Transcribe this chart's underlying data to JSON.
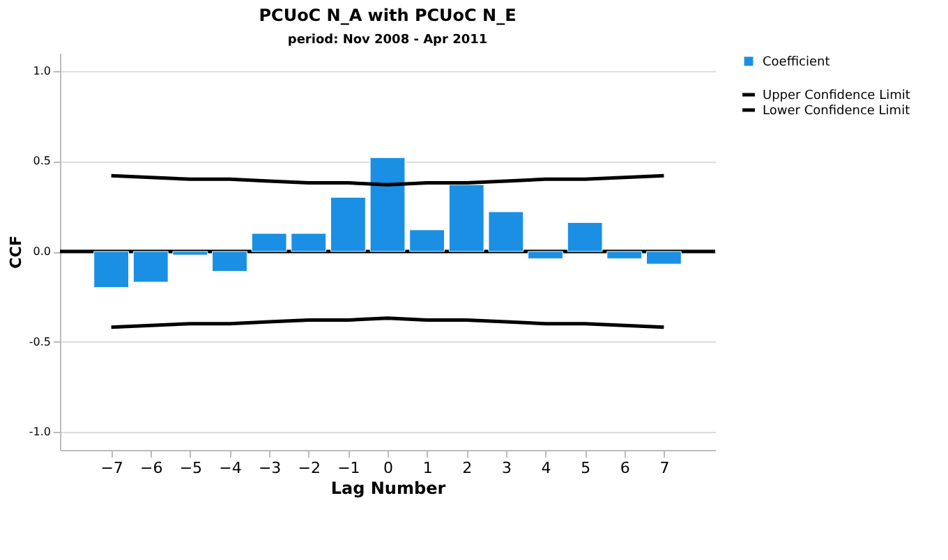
{
  "chart_data": {
    "type": "bar",
    "title": "PCUoC N_A with PCUoC N_E",
    "subtitle": "period: Nov 2008 - Apr 2011",
    "xlabel": "Lag Number",
    "ylabel": "CCF",
    "x": [
      -7,
      -6,
      -5,
      -4,
      -3,
      -2,
      -1,
      0,
      1,
      2,
      3,
      4,
      5,
      6,
      7
    ],
    "series": [
      {
        "name": "Coefficient",
        "color": "#1a8fe3",
        "values": [
          -0.2,
          -0.17,
          -0.02,
          -0.11,
          0.1,
          0.1,
          0.3,
          0.52,
          0.12,
          0.37,
          0.22,
          -0.04,
          0.16,
          -0.04,
          -0.07
        ]
      },
      {
        "name": "Upper Confidence Limit",
        "type": "line",
        "color": "#000000",
        "values": [
          0.42,
          0.41,
          0.4,
          0.4,
          0.39,
          0.38,
          0.38,
          0.37,
          0.38,
          0.38,
          0.39,
          0.4,
          0.4,
          0.41,
          0.42
        ]
      },
      {
        "name": "Lower Confidence Limit",
        "type": "line",
        "color": "#000000",
        "values": [
          -0.42,
          -0.41,
          -0.4,
          -0.4,
          -0.39,
          -0.38,
          -0.38,
          -0.37,
          -0.38,
          -0.38,
          -0.39,
          -0.4,
          -0.4,
          -0.41,
          -0.42
        ]
      }
    ],
    "xlim": [
      -8.3,
      8.3
    ],
    "xticks": [
      -7,
      -6,
      -5,
      -4,
      -3,
      -2,
      -1,
      0,
      1,
      2,
      3,
      4,
      5,
      6,
      7
    ],
    "ylim": [
      -1.1,
      1.1
    ],
    "yticks": [
      {
        "value": -1.0,
        "label": "-1.0"
      },
      {
        "value": -0.5,
        "label": "-0.5"
      },
      {
        "value": 0.0,
        "label": "0.0"
      },
      {
        "value": 0.5,
        "label": "0.5"
      },
      {
        "value": 1.0,
        "label": "1.0"
      }
    ],
    "ref_lines": [
      {
        "axis": "y",
        "value": 0,
        "color": "#000000"
      }
    ],
    "grid": "y",
    "legend": "top right",
    "marker": "none",
    "line_style": "solid"
  }
}
